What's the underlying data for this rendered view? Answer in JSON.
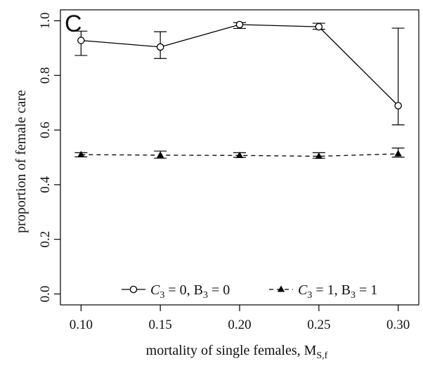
{
  "chart_data": {
    "type": "line",
    "panel_label": "C",
    "xlabel": "mortality of single females, M",
    "xlabel_subscript": "S,f",
    "ylabel": "proportion of female care",
    "x": [
      0.1,
      0.15,
      0.2,
      0.25,
      0.3
    ],
    "x_tick_labels": [
      "0.10",
      "0.15",
      "0.20",
      "0.25",
      "0.30"
    ],
    "y_tick_values": [
      0.0,
      0.2,
      0.4,
      0.6,
      0.8,
      1.0
    ],
    "y_tick_labels": [
      "0.0",
      "0.2",
      "0.4",
      "0.6",
      "0.8",
      "1.0"
    ],
    "xlim": [
      0.087,
      0.313
    ],
    "ylim": [
      -0.04,
      1.04
    ],
    "grid": false,
    "legend_position": "bottom",
    "series": [
      {
        "legend_prefix": "C",
        "legend_sub1": "3",
        "legend_mid": " = 0, B",
        "legend_sub2": "3",
        "legend_suffix": " = 0",
        "line_style": "solid",
        "marker": "open-circle",
        "values": [
          0.928,
          0.904,
          0.986,
          0.978,
          0.689
        ],
        "lower": [
          0.873,
          0.862,
          0.972,
          0.969,
          0.619
        ],
        "upper": [
          0.962,
          0.96,
          0.993,
          0.991,
          0.973
        ]
      },
      {
        "legend_prefix": "C",
        "legend_sub1": "3",
        "legend_mid": " = 1, B",
        "legend_sub2": "3",
        "legend_suffix": " = 1",
        "line_style": "dashed",
        "marker": "filled-triangle",
        "values": [
          0.51,
          0.508,
          0.507,
          0.504,
          0.513
        ],
        "lower": [
          0.502,
          0.497,
          0.5,
          0.497,
          0.501
        ],
        "upper": [
          0.517,
          0.523,
          0.517,
          0.517,
          0.534
        ]
      }
    ]
  }
}
